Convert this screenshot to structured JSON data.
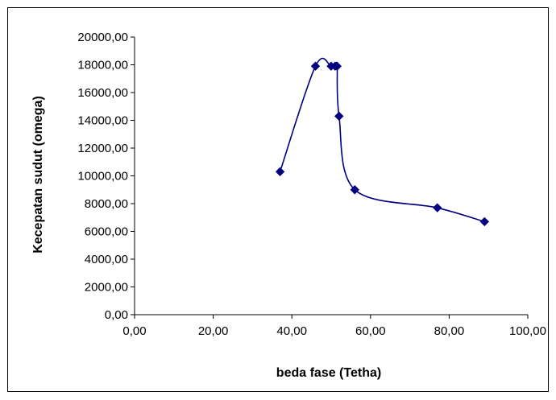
{
  "chart_data": {
    "type": "scatter",
    "title": "",
    "xlabel": "beda fase (Tetha)",
    "ylabel": "Kecepatan sudut (omega)",
    "xlim": [
      0,
      100
    ],
    "ylim": [
      0,
      20000
    ],
    "x_ticks": [
      "0,00",
      "20,00",
      "40,00",
      "60,00",
      "80,00",
      "100,00"
    ],
    "y_ticks": [
      "0,00",
      "2000,00",
      "4000,00",
      "6000,00",
      "8000,00",
      "10000,00",
      "12000,00",
      "14000,00",
      "16000,00",
      "18000,00",
      "20000,00"
    ],
    "grid": false,
    "legend": false,
    "line_smoothed": true,
    "marker": "diamond",
    "color": "#000080",
    "series": [
      {
        "x": [
          37,
          46,
          50,
          51,
          51.5,
          52,
          56,
          77,
          89
        ],
        "y": [
          10300,
          17900,
          17900,
          17900,
          17900,
          14300,
          9000,
          7700,
          6700
        ]
      }
    ]
  }
}
